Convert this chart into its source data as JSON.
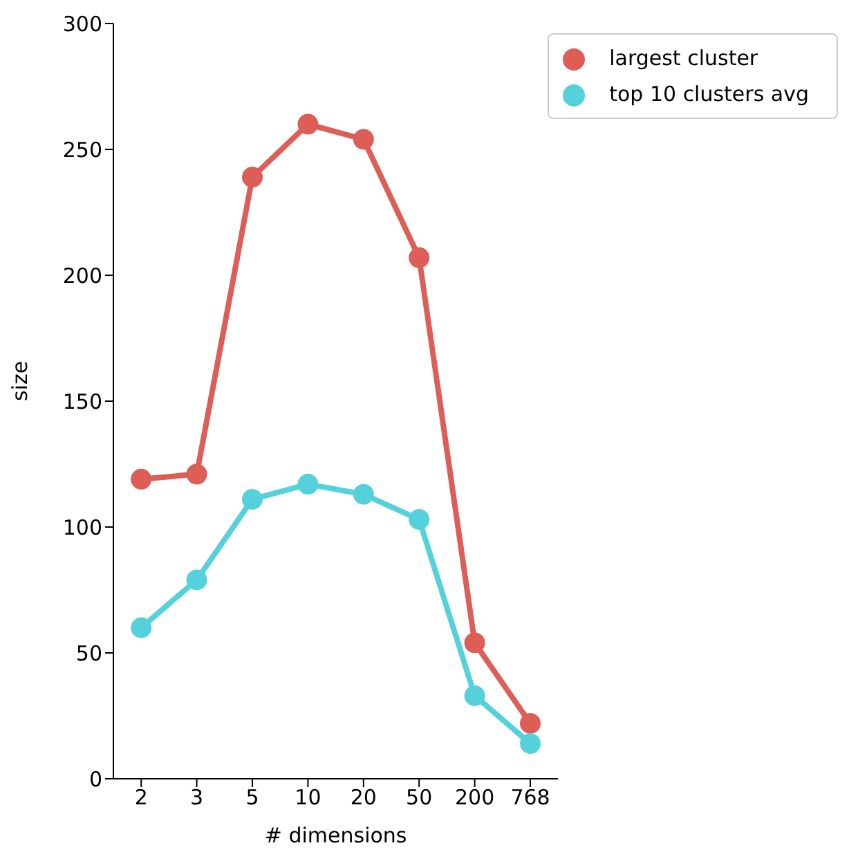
{
  "chart_data": {
    "type": "line",
    "xlabel": "# dimensions",
    "ylabel": "size",
    "categories": [
      "2",
      "3",
      "5",
      "10",
      "20",
      "50",
      "200",
      "768"
    ],
    "series": [
      {
        "name": "largest cluster",
        "color": "#dc5e57",
        "values": [
          119,
          121,
          239,
          260,
          254,
          207,
          54,
          22
        ]
      },
      {
        "name": "top 10 clusters avg",
        "color": "#55d1db",
        "values": [
          60,
          79,
          111,
          117,
          113,
          103,
          33,
          14
        ]
      }
    ],
    "ylim": [
      0,
      300
    ],
    "yticks": [
      0,
      50,
      100,
      150,
      200,
      250,
      300
    ],
    "grid": false,
    "legend": "top right",
    "marker": "circle",
    "line_style": "solid"
  }
}
